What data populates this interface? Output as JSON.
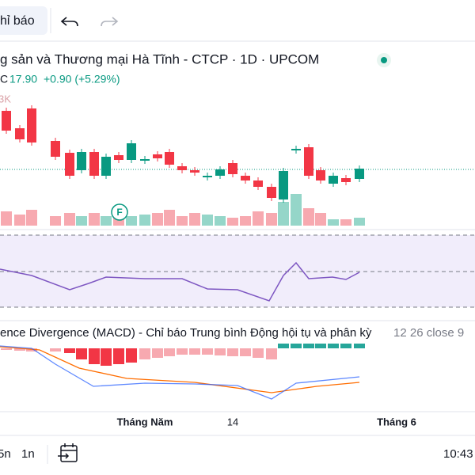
{
  "toolbar": {
    "indicators": "hỉ báo"
  },
  "legend": {
    "title": "g sản và Thương mại Hà Tĩnh - CTCP · 1D · UPCOM",
    "close_label": "C",
    "close": "17.90",
    "change": "+0.90 (+5.29%)",
    "volume_label": "3K"
  },
  "marker": "F",
  "macd": {
    "title": "ence Divergence (MACD) - Chỉ báo Trung bình Động hội tụ và phân kỳ",
    "params": "12 26 close 9"
  },
  "x_axis": [
    "Tháng Năm",
    "14",
    "Tháng 6"
  ],
  "bottom_bar": {
    "range_5d": "5n",
    "range_1d": "1n",
    "clock": "10:43"
  }
}
